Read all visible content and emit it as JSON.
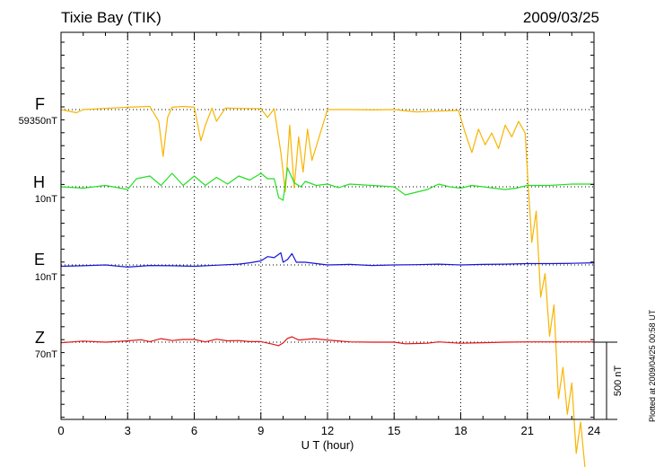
{
  "header": {
    "station": "Tixie Bay (TIK)",
    "date": "2009/03/25"
  },
  "footer": {
    "plotted": "Plotted at 2009/04/25 00:58 UT"
  },
  "chart_data": {
    "type": "line",
    "title": "Tixie Bay (TIK)",
    "date": "2009/03/25",
    "xlabel": "U T (hour)",
    "xlim": [
      0,
      24
    ],
    "xticks": [
      0,
      3,
      6,
      9,
      12,
      15,
      18,
      21,
      24
    ],
    "scale_bar_label": "500 nT",
    "series": [
      {
        "name": "F",
        "scale_label": "59350nT",
        "color": "#f7b500",
        "spike_direction": "down",
        "x": [
          0,
          0.7,
          1.0,
          2.0,
          3.0,
          4.0,
          4.4,
          4.6,
          4.8,
          5.0,
          5.5,
          6.0,
          6.3,
          6.5,
          6.8,
          7.0,
          7.4,
          8.0,
          9.0,
          9.3,
          9.6,
          9.9,
          10.1,
          10.3,
          10.5,
          10.7,
          10.9,
          11.1,
          11.3,
          12.0,
          13.0,
          14.0,
          15.0,
          16.0,
          17.0,
          17.9,
          18.2,
          18.5,
          18.8,
          19.1,
          19.4,
          19.7,
          20.0,
          20.3,
          20.6,
          20.9,
          21.0,
          21.2,
          21.4,
          21.6,
          21.8,
          22.0,
          22.2,
          22.4,
          22.6,
          22.8,
          23.0,
          23.2,
          23.4,
          23.6
        ],
        "y": [
          0,
          -40,
          0,
          15,
          30,
          40,
          -150,
          -600,
          -100,
          30,
          40,
          30,
          -400,
          -200,
          20,
          -150,
          20,
          15,
          10,
          -100,
          10,
          -550,
          -1050,
          -200,
          -1000,
          -350,
          -800,
          -250,
          -650,
          0,
          0,
          -5,
          0,
          -30,
          -20,
          -10,
          -300,
          -550,
          -250,
          -450,
          -300,
          -500,
          -200,
          -350,
          -150,
          -300,
          -800,
          -1700,
          -1300,
          -2400,
          -2100,
          -2900,
          -2500,
          -3700,
          -3300,
          -3900,
          -3500,
          -4400,
          -4000,
          -4600
        ]
      },
      {
        "name": "H",
        "scale_label": "10nT",
        "color": "#22e022",
        "spike_direction": "up",
        "x": [
          0,
          1.0,
          2.0,
          3.0,
          3.4,
          4.0,
          4.5,
          5.0,
          5.5,
          6.0,
          6.5,
          7.0,
          7.5,
          8.0,
          8.5,
          9.0,
          9.3,
          9.6,
          9.8,
          10.0,
          10.2,
          10.5,
          10.8,
          11.0,
          11.5,
          12.0,
          12.5,
          13.0,
          14.0,
          15.0,
          15.5,
          16.0,
          16.5,
          17.0,
          17.5,
          18.0,
          18.5,
          19.0,
          20.0,
          20.5,
          21.0,
          22.0,
          23.0,
          24.0
        ],
        "y": [
          0,
          -0.5,
          0.5,
          -1,
          3,
          4,
          0.5,
          5,
          0.5,
          4,
          0.5,
          3.5,
          1,
          4,
          2.5,
          5,
          3,
          3,
          -4,
          -5,
          7,
          1.5,
          0,
          2,
          0.5,
          1,
          -0.3,
          1,
          0.5,
          0,
          -3,
          -2,
          -1,
          1,
          0,
          -0.5,
          0.5,
          0,
          -1,
          -0.5,
          0.5,
          0.5,
          1,
          1
        ]
      },
      {
        "name": "E",
        "scale_label": "10nT",
        "color": "#1515d8",
        "spike_direction": "up",
        "x": [
          0,
          1.0,
          2.0,
          3.0,
          4.0,
          5.0,
          6.0,
          7.0,
          8.0,
          8.5,
          9.0,
          9.3,
          9.6,
          9.9,
          10.0,
          10.2,
          10.4,
          10.6,
          11.0,
          12.0,
          13.0,
          14.0,
          15.0,
          16.0,
          17.0,
          18.0,
          19.0,
          20.0,
          21.0,
          22.0,
          23.0,
          24.0
        ],
        "y": [
          -0.5,
          -0.3,
          0,
          -0.8,
          -0.2,
          -0.3,
          -0.5,
          -0.1,
          0.3,
          0.8,
          1.5,
          3.1,
          2.7,
          4.5,
          1.0,
          2.0,
          4.2,
          1.0,
          1.0,
          0,
          0.2,
          -0.2,
          0,
          0.1,
          0.3,
          0,
          0.2,
          0.3,
          0.5,
          0.5,
          0.6,
          0.8
        ]
      },
      {
        "name": "Z",
        "scale_label": "70nT",
        "color": "#e01515",
        "spike_direction": "up",
        "x": [
          0,
          1.0,
          2.0,
          3.0,
          3.6,
          4.0,
          4.5,
          5.0,
          5.5,
          6.0,
          6.5,
          7.0,
          7.5,
          8.0,
          8.5,
          9.0,
          9.5,
          9.8,
          10.0,
          10.2,
          10.4,
          10.7,
          11.0,
          11.4,
          12.0,
          13.0,
          14.0,
          15.0,
          15.5,
          16.0,
          16.5,
          17.0,
          18.0,
          19.0,
          20.0,
          21.0,
          22.0,
          23.0,
          24.0
        ],
        "y": [
          -0.2,
          0.4,
          0,
          0.5,
          0.9,
          0.2,
          1.3,
          0.6,
          1.0,
          1.0,
          0.1,
          1.1,
          0.5,
          0.6,
          0.2,
          0.2,
          -0.7,
          -1.3,
          -0.3,
          1.4,
          2.0,
          0.8,
          1.0,
          1.3,
          0.8,
          0.1,
          0,
          0,
          -0.6,
          -0.5,
          -0.4,
          0.1,
          -0.4,
          -0.2,
          0,
          0.1,
          0.1,
          0.1,
          0.1
        ]
      }
    ]
  }
}
